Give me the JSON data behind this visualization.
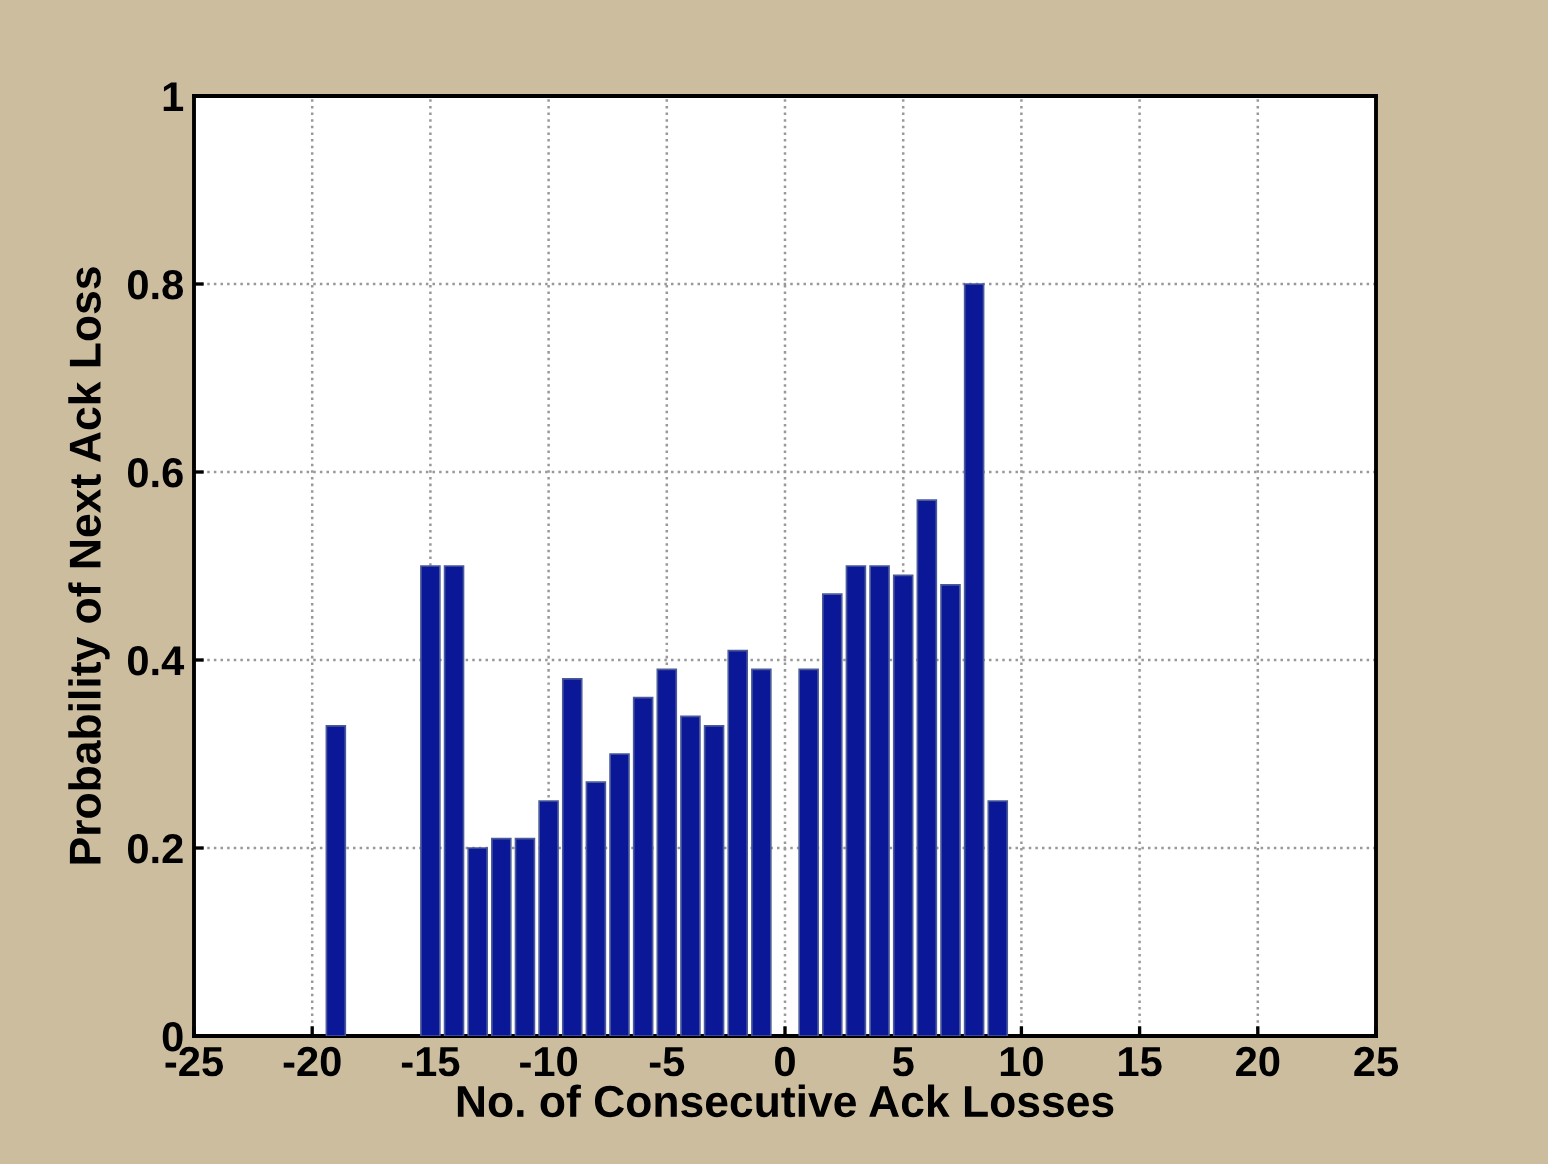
{
  "chart_data": {
    "type": "bar",
    "xlabel": "No. of Consecutive Ack Losses",
    "ylabel": "Probability of Next Ack Loss",
    "x": [
      -19,
      -15,
      -14,
      -13,
      -12,
      -11,
      -10,
      -9,
      -8,
      -7,
      -6,
      -5,
      -4,
      -3,
      -2,
      -1,
      1,
      2,
      3,
      4,
      5,
      6,
      7,
      8,
      9
    ],
    "values": [
      0.33,
      0.5,
      0.5,
      0.2,
      0.21,
      0.21,
      0.25,
      0.38,
      0.27,
      0.3,
      0.36,
      0.39,
      0.34,
      0.33,
      0.41,
      0.39,
      0.39,
      0.47,
      0.5,
      0.5,
      0.49,
      0.57,
      0.48,
      0.8,
      0.25
    ],
    "color": "#0a1796",
    "xlim": [
      -25,
      25
    ],
    "xticks": [
      -25,
      -20,
      -15,
      -10,
      -5,
      0,
      5,
      10,
      15,
      20,
      25
    ],
    "ylim": [
      0,
      1
    ],
    "yticks": [
      0,
      0.2,
      0.4,
      0.6,
      0.8,
      1
    ],
    "grid": true
  }
}
